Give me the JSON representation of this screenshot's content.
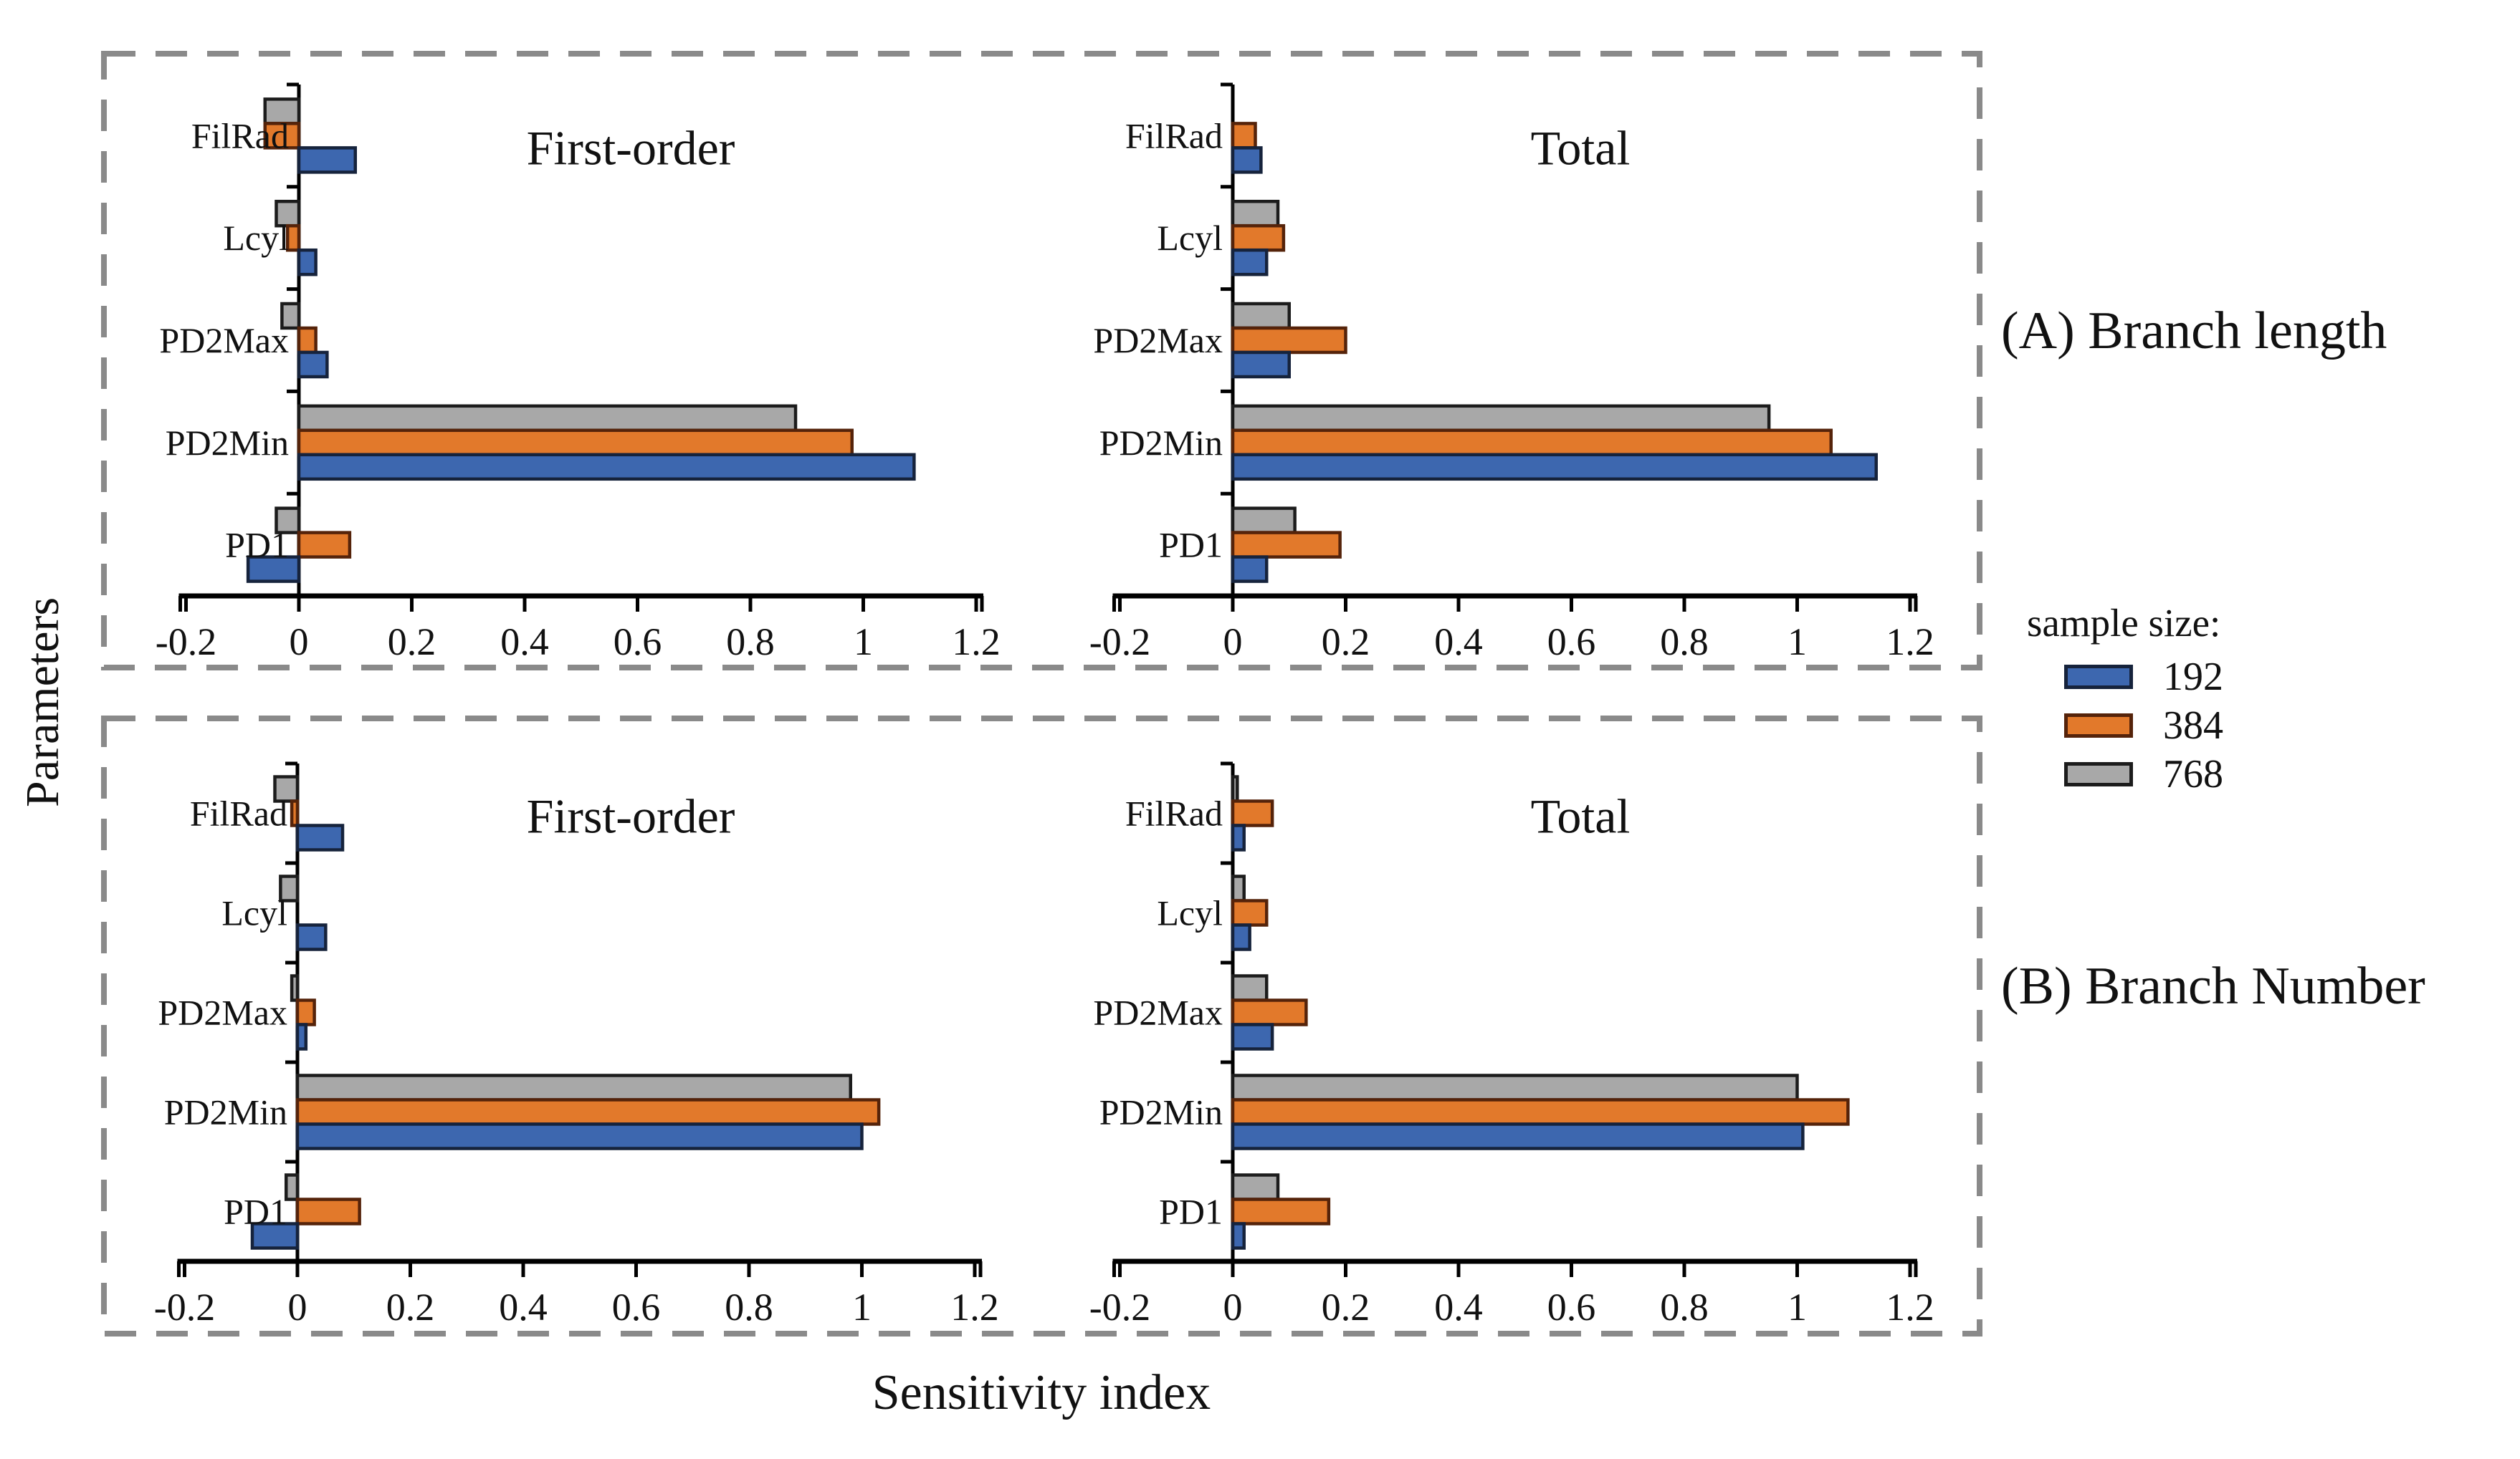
{
  "figure": {
    "y_axis_label": "Parameters",
    "x_axis_label": "Sensitivity index"
  },
  "row_labels": [
    {
      "label": "(A) Branch length"
    },
    {
      "label": "(B) Branch Number"
    }
  ],
  "legend": {
    "title": "sample size:",
    "items": [
      {
        "label": "192",
        "color": "#3D67AF",
        "border": "#16233C"
      },
      {
        "label": "384",
        "color": "#E2792B",
        "border": "#55230A"
      },
      {
        "label": "768",
        "color": "#A8A8A8",
        "border": "#1C1C1C"
      }
    ]
  },
  "colors": {
    "axis": "#000000",
    "text": "#111111",
    "dashed_box": "#8A8A8A",
    "background": "#FFFFFF"
  },
  "axis": {
    "min": -0.2,
    "max": 1.2,
    "ticks": [
      -0.2,
      0,
      0.2,
      0.4,
      0.6,
      0.8,
      1,
      1.2
    ],
    "tick_labels": [
      "-0.2",
      "0",
      "0.2",
      "0.4",
      "0.6",
      "0.8",
      "1",
      "1.2"
    ]
  },
  "chart_data": [
    {
      "type": "bar",
      "orientation": "horizontal",
      "panel": "top-left",
      "title": "First-order",
      "row_group": "(A) Branch length",
      "xlim": [
        -0.2,
        1.2
      ],
      "categories": [
        "FilRad",
        "Lcyl",
        "PD2Max",
        "PD2Min",
        "PD1"
      ],
      "series": [
        {
          "name": "192",
          "color": "#3D67AF",
          "border": "#16233C",
          "values": [
            0.1,
            0.03,
            0.05,
            1.09,
            -0.09
          ]
        },
        {
          "name": "384",
          "color": "#E2792B",
          "border": "#55230A",
          "values": [
            -0.06,
            -0.02,
            0.03,
            0.98,
            0.09
          ]
        },
        {
          "name": "768",
          "color": "#A8A8A8",
          "border": "#1C1C1C",
          "values": [
            -0.06,
            -0.04,
            -0.03,
            0.88,
            -0.04
          ]
        }
      ]
    },
    {
      "type": "bar",
      "orientation": "horizontal",
      "panel": "top-right",
      "title": "Total",
      "row_group": "(A) Branch length",
      "xlim": [
        -0.2,
        1.2
      ],
      "categories": [
        "FilRad",
        "Lcyl",
        "PD2Max",
        "PD2Min",
        "PD1"
      ],
      "series": [
        {
          "name": "192",
          "color": "#3D67AF",
          "border": "#16233C",
          "values": [
            0.05,
            0.06,
            0.1,
            1.14,
            0.06
          ]
        },
        {
          "name": "384",
          "color": "#E2792B",
          "border": "#55230A",
          "values": [
            0.04,
            0.09,
            0.2,
            1.06,
            0.19
          ]
        },
        {
          "name": "768",
          "color": "#A8A8A8",
          "border": "#1C1C1C",
          "values": [
            0.003,
            0.08,
            0.1,
            0.95,
            0.11
          ]
        }
      ]
    },
    {
      "type": "bar",
      "orientation": "horizontal",
      "panel": "bottom-left",
      "title": "First-order",
      "row_group": "(B) Branch Number",
      "xlim": [
        -0.2,
        1.2
      ],
      "categories": [
        "FilRad",
        "Lcyl",
        "PD2Max",
        "PD2Min",
        "PD1"
      ],
      "series": [
        {
          "name": "192",
          "color": "#3D67AF",
          "border": "#16233C",
          "values": [
            0.08,
            0.05,
            0.015,
            1.0,
            -0.08
          ]
        },
        {
          "name": "384",
          "color": "#E2792B",
          "border": "#55230A",
          "values": [
            -0.01,
            0.003,
            0.03,
            1.03,
            0.11
          ]
        },
        {
          "name": "768",
          "color": "#A8A8A8",
          "border": "#1C1C1C",
          "values": [
            -0.04,
            -0.03,
            -0.01,
            0.98,
            -0.02
          ]
        }
      ]
    },
    {
      "type": "bar",
      "orientation": "horizontal",
      "panel": "bottom-right",
      "title": "Total",
      "row_group": "(B) Branch Number",
      "xlim": [
        -0.2,
        1.2
      ],
      "categories": [
        "FilRad",
        "Lcyl",
        "PD2Max",
        "PD2Min",
        "PD1"
      ],
      "series": [
        {
          "name": "192",
          "color": "#3D67AF",
          "border": "#16233C",
          "values": [
            0.02,
            0.03,
            0.07,
            1.01,
            0.02
          ]
        },
        {
          "name": "384",
          "color": "#E2792B",
          "border": "#55230A",
          "values": [
            0.07,
            0.06,
            0.13,
            1.09,
            0.17
          ]
        },
        {
          "name": "768",
          "color": "#A8A8A8",
          "border": "#1C1C1C",
          "values": [
            0.008,
            0.02,
            0.06,
            1.0,
            0.08
          ]
        }
      ]
    }
  ]
}
